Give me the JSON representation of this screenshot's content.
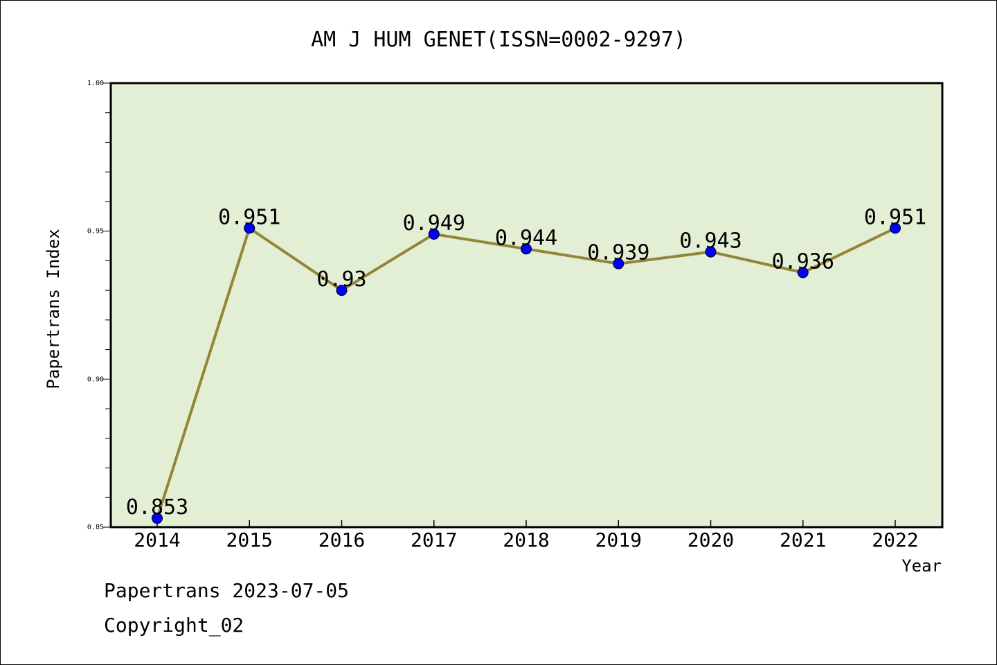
{
  "chart_data": {
    "type": "line",
    "title": "AM J HUM GENET(ISSN=0002-9297)",
    "xlabel": "Year",
    "ylabel": "Papertrans Index",
    "categories": [
      "2014",
      "2015",
      "2016",
      "2017",
      "2018",
      "2019",
      "2020",
      "2021",
      "2022"
    ],
    "values": [
      0.853,
      0.951,
      0.93,
      0.949,
      0.944,
      0.939,
      0.943,
      0.936,
      0.951
    ],
    "data_labels": [
      "0.853",
      "0.951",
      "0.93",
      "0.949",
      "0.944",
      "0.939",
      "0.943",
      "0.936",
      "0.951"
    ],
    "ylim": [
      0.85,
      1.0
    ],
    "yticks": [
      "0.85",
      "0.90",
      "0.95",
      "1.00"
    ],
    "ytick_values": [
      0.85,
      0.9,
      0.95,
      1.0
    ],
    "grid": false,
    "colors": {
      "plot_background": "#e2efd5",
      "line": "#928538",
      "marker": "#0000ff"
    }
  },
  "footer": {
    "date_line": "Papertrans 2023-07-05",
    "copyright": "Copyright_02"
  }
}
